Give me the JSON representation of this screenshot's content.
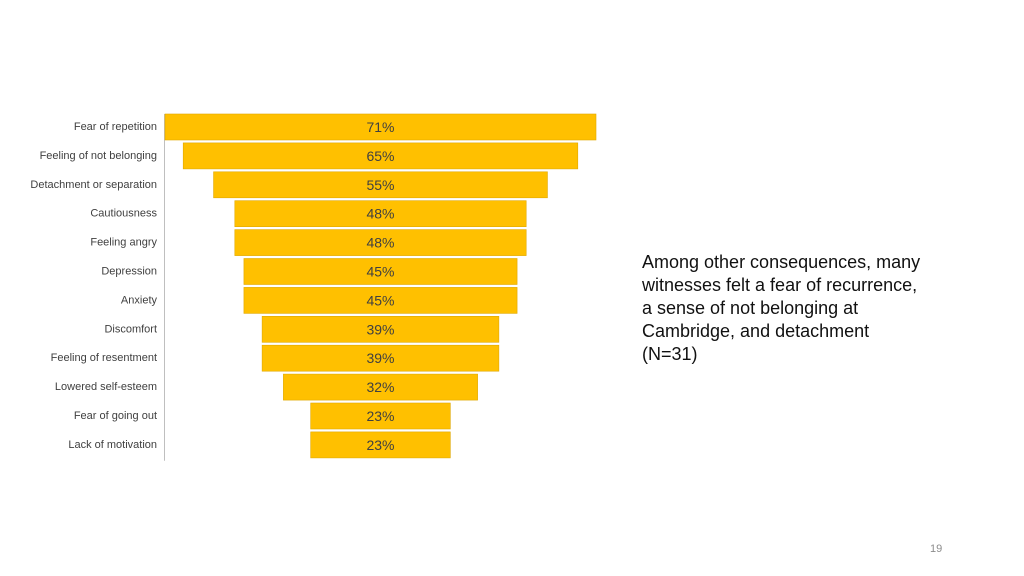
{
  "chart_data": {
    "type": "bar",
    "orientation": "horizontal-centered",
    "categories": [
      "Fear of repetition",
      "Feeling of not belonging",
      "Detachment or separation",
      "Cautiousness",
      "Feeling angry",
      "Depression",
      "Anxiety",
      "Discomfort",
      "Feeling of resentment",
      "Lowered self-esteem",
      "Fear of going out",
      "Lack of motivation"
    ],
    "values": [
      71,
      65,
      55,
      48,
      48,
      45,
      45,
      39,
      39,
      32,
      23,
      23
    ],
    "value_labels": [
      "71%",
      "65%",
      "55%",
      "48%",
      "48%",
      "45%",
      "45%",
      "39%",
      "39%",
      "32%",
      "23%",
      "23%"
    ],
    "unit": "%",
    "bar_color": "#FFC000",
    "title": "",
    "xlabel": "",
    "ylabel": "",
    "grid": false,
    "legend": "none"
  },
  "caption": {
    "lines": [
      "Among other consequences, many",
      "witnesses felt a fear of recurrence,",
      "a sense of not belonging at",
      "Cambridge, and detachment",
      "(N=31)"
    ]
  },
  "page_number": "19"
}
